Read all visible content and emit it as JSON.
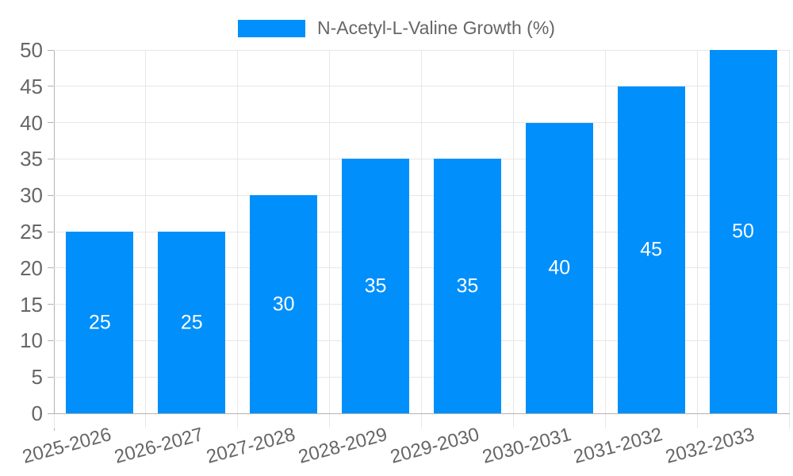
{
  "chart_data": {
    "type": "bar",
    "title": "",
    "legend": {
      "label": "N-Acetyl-L-Valine Growth (%)",
      "position": "top"
    },
    "categories": [
      "2025-2026",
      "2026-2027",
      "2027-2028",
      "2028-2029",
      "2029-2030",
      "2030-2031",
      "2031-2032",
      "2032-2033"
    ],
    "series": [
      {
        "name": "N-Acetyl-L-Valine Growth (%)",
        "values": [
          25,
          25,
          30,
          35,
          35,
          40,
          45,
          50
        ]
      }
    ],
    "data_labels": [
      "25",
      "25",
      "30",
      "35",
      "35",
      "40",
      "45",
      "50"
    ],
    "xlabel": "",
    "ylabel": "",
    "ylim": [
      0,
      50
    ],
    "yticks": [
      0,
      5,
      10,
      15,
      20,
      25,
      30,
      35,
      40,
      45,
      50
    ],
    "grid": true,
    "colors": {
      "bar": "#008FFB",
      "grid_line": "#e7e7e7",
      "axis_line": "#b3b3b3",
      "axis_label": "#666666",
      "data_label": "#ffffff",
      "background": "#ffffff"
    }
  }
}
